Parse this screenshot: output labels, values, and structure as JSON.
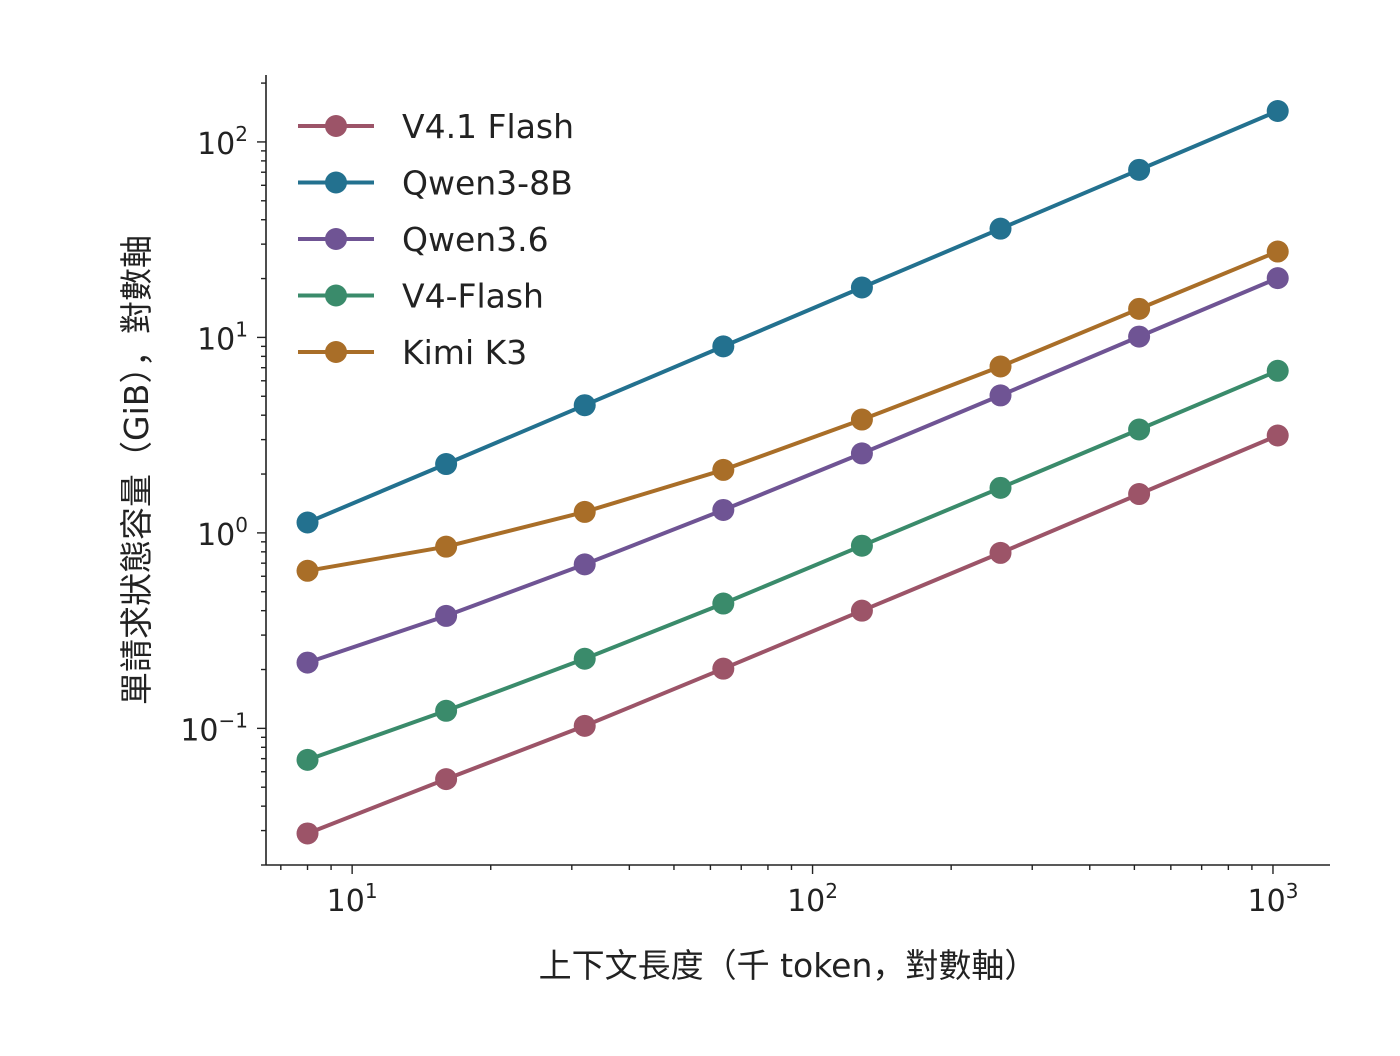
{
  "chart_data": {
    "type": "line",
    "title": "",
    "xlabel": "上下文長度（千 token，對數軸）",
    "ylabel": "單請求狀態容量（GiB），對數軸",
    "xscale": "log",
    "yscale": "log",
    "xlim": [
      6.5,
      1330
    ],
    "ylim": [
      0.02,
      220
    ],
    "grid": false,
    "legend_position": "top-left",
    "x_ticks": [
      {
        "base": "10",
        "exp": "1",
        "value": 10
      },
      {
        "base": "10",
        "exp": "2",
        "value": 100
      },
      {
        "base": "10",
        "exp": "3",
        "value": 1000
      }
    ],
    "y_ticks": [
      {
        "base": "10",
        "exp": "−1",
        "value": 0.1
      },
      {
        "base": "10",
        "exp": "0",
        "value": 1
      },
      {
        "base": "10",
        "exp": "1",
        "value": 10
      },
      {
        "base": "10",
        "exp": "2",
        "value": 100
      }
    ],
    "x": [
      8,
      16,
      32,
      64,
      128,
      256,
      512,
      1024
    ],
    "series": [
      {
        "name": "V4.1 Flash",
        "color": "#9c5468",
        "values": [
          0.029,
          0.055,
          0.103,
          0.202,
          0.4,
          0.79,
          1.58,
          3.15
        ]
      },
      {
        "name": "Qwen3-8B",
        "color": "#23718f",
        "values": [
          1.13,
          2.25,
          4.5,
          9.0,
          18.0,
          36.0,
          72.0,
          144.0
        ]
      },
      {
        "name": "Qwen3.6",
        "color": "#6f5494",
        "values": [
          0.217,
          0.376,
          0.69,
          1.31,
          2.55,
          5.05,
          10.1,
          20.1
        ]
      },
      {
        "name": "V4-Flash",
        "color": "#3a8b6b",
        "values": [
          0.069,
          0.123,
          0.227,
          0.435,
          0.86,
          1.7,
          3.38,
          6.75
        ]
      },
      {
        "name": "Kimi K3",
        "color": "#a96e28",
        "values": [
          0.64,
          0.85,
          1.28,
          2.1,
          3.8,
          7.1,
          14.0,
          27.5
        ]
      }
    ]
  }
}
